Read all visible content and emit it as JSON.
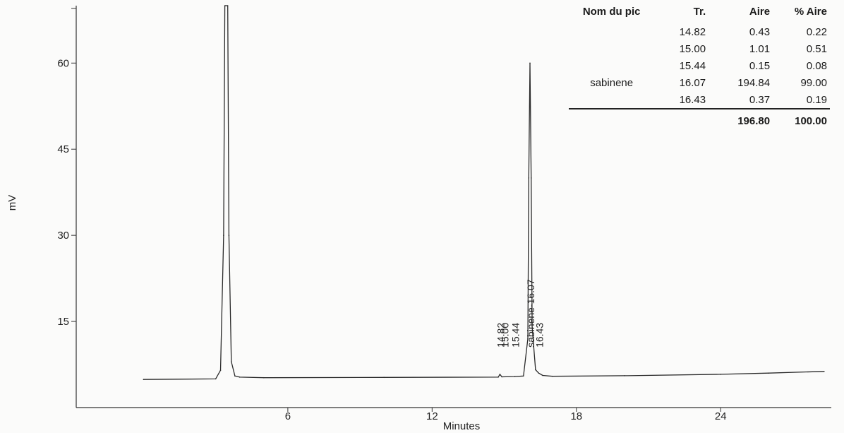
{
  "chart_data": {
    "type": "line",
    "xlabel": "Minutes",
    "ylabel": "mV",
    "xlim": [
      -2.8,
      28.6
    ],
    "ylim": [
      0,
      70
    ],
    "x_ticks": [
      6,
      12,
      18,
      24
    ],
    "y_ticks": [
      15,
      30,
      45,
      60
    ],
    "series": [
      {
        "x": [
          0.0,
          3.0,
          3.2,
          3.33,
          3.38,
          3.42,
          3.5,
          3.55,
          3.65,
          3.8,
          4.0,
          5.0,
          10.0,
          14.75,
          14.82,
          14.9,
          15.44,
          15.8,
          15.98,
          16.02,
          16.07,
          16.12,
          16.16,
          16.3,
          16.43,
          16.6,
          17.0,
          20.0,
          24.0,
          26.0,
          28.3
        ],
        "y": [
          4.9,
          5.0,
          6.5,
          30.0,
          70.0,
          70.0,
          70.0,
          30.0,
          8.0,
          5.5,
          5.3,
          5.2,
          5.25,
          5.3,
          5.8,
          5.35,
          5.4,
          5.5,
          12.0,
          40.0,
          60.0,
          40.0,
          14.0,
          6.6,
          6.0,
          5.6,
          5.45,
          5.55,
          5.8,
          6.0,
          6.3
        ]
      }
    ],
    "peak_labels": [
      "14.82",
      "15.00",
      "15.44",
      "sabinene-16.07",
      "16.43"
    ],
    "peak_label_x": [
      14.82,
      15.0,
      15.44,
      16.07,
      16.43
    ]
  },
  "peak_table": {
    "headers": [
      "Nom du pic",
      "Tr.",
      "Aire",
      "% Aire"
    ],
    "rows": [
      [
        "",
        "14.82",
        "0.43",
        "0.22"
      ],
      [
        "",
        "15.00",
        "1.01",
        "0.51"
      ],
      [
        "",
        "15.44",
        "0.15",
        "0.08"
      ],
      [
        "sabinene",
        "16.07",
        "194.84",
        "99.00"
      ],
      [
        "",
        "16.43",
        "0.37",
        "0.19"
      ]
    ],
    "totals": [
      "",
      "",
      "196.80",
      "100.00"
    ]
  }
}
